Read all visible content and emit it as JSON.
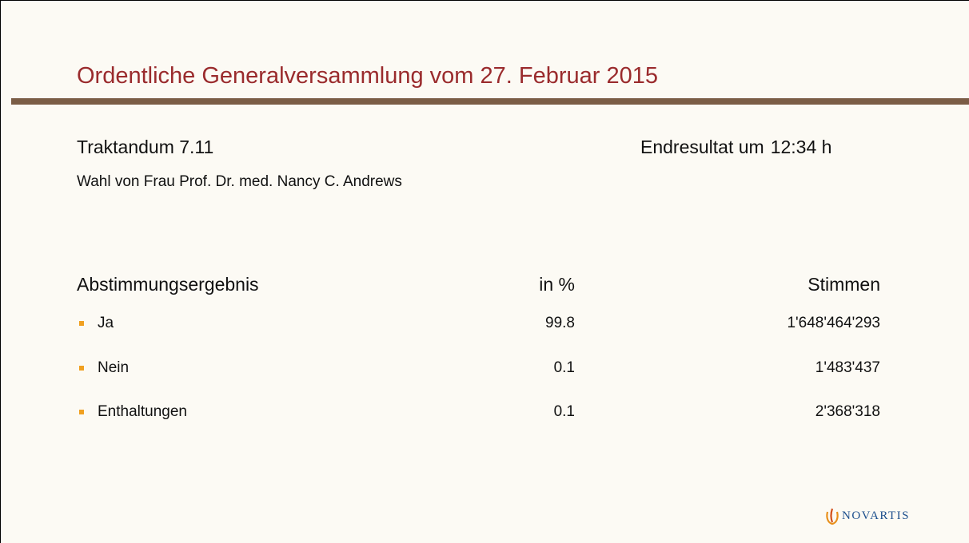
{
  "header": {
    "title": "Ordentliche Generalversammlung vom 27. Februar 2015"
  },
  "agenda": {
    "item": "Traktandum 7.11",
    "result_label": "Endresultat um",
    "result_time": "12:34 h",
    "description": "Wahl von Frau Prof. Dr. med. Nancy C. Andrews"
  },
  "table": {
    "columns": [
      "Abstimmungsergebnis",
      "in %",
      "Stimmen"
    ],
    "rows": [
      [
        "Ja",
        "99.8",
        "1'648'464'293"
      ],
      [
        "Nein",
        "0.1",
        "1'483'437"
      ],
      [
        "Enthaltungen",
        "0.1",
        "2'368'318"
      ]
    ]
  },
  "footer": {
    "logo": "NOVARTIS"
  }
}
